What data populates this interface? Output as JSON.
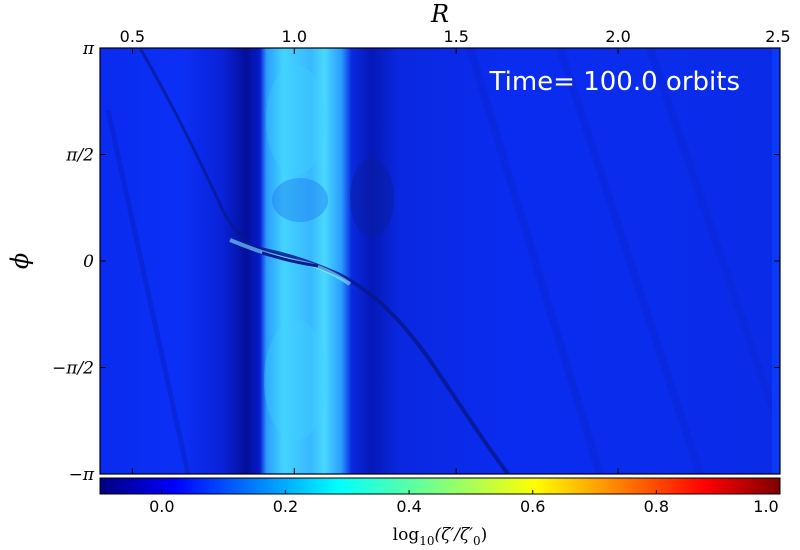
{
  "chart_data": {
    "type": "heatmap",
    "title": "",
    "annotation": "Time= 100.0 orbits",
    "x_axis": {
      "label": "R",
      "position": "top",
      "range": [
        0.4,
        2.5
      ],
      "ticks": [
        0.5,
        1.0,
        1.5,
        2.0,
        2.5
      ],
      "tick_labels": [
        "0.5",
        "1.0",
        "1.5",
        "2.0",
        "2.5"
      ]
    },
    "y_axis": {
      "label": "ϕ",
      "range": [
        -3.14159,
        3.14159
      ],
      "ticks": [
        3.14159,
        1.5708,
        0,
        -1.5708,
        -3.14159
      ],
      "tick_labels": [
        "π",
        "π/2",
        "0",
        "−π/2",
        "−π"
      ]
    },
    "colorbar": {
      "label": "log10(ζ′/ζ′0)",
      "label_main": "log",
      "label_sub": "10",
      "label_rest": "(ζ′/ζ′",
      "label_sub2": "0",
      "label_end": ")",
      "range": [
        -0.1,
        1.0
      ],
      "colormap": "jet",
      "ticks": [
        0.0,
        0.2,
        0.4,
        0.6,
        0.8,
        1.0
      ],
      "tick_labels": [
        "0.0",
        "0.2",
        "0.4",
        "0.6",
        "0.8",
        "1.0"
      ]
    },
    "field_features": {
      "background_value": 0.07,
      "ring": {
        "r_min": 0.85,
        "r_max": 1.13,
        "value": 0.23
      },
      "gap_dark": [
        {
          "r_min": 0.78,
          "r_max": 0.84,
          "value": -0.02
        },
        {
          "r_min": 1.14,
          "r_max": 1.3,
          "value": 0.0
        }
      ],
      "planet": {
        "r": 1.0,
        "phi": 0
      }
    }
  }
}
